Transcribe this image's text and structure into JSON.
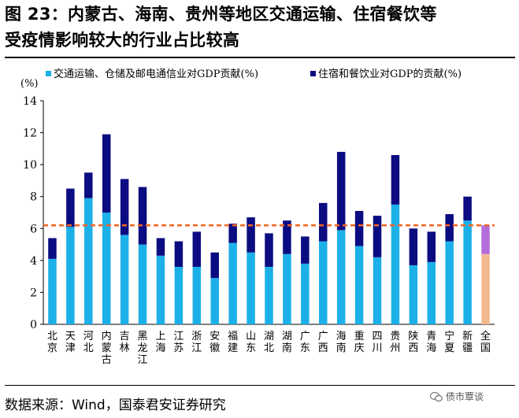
{
  "header": {
    "title_line1": "图 23：内蒙古、海南、贵州等地区交通运输、住宿餐饮等",
    "title_line2": "受疫情影响较大的行业占比较高"
  },
  "footer": {
    "source": "数据来源：Wind，国泰君安证券研究",
    "watermark": "债市覃谈"
  },
  "colors": {
    "transport": "#1cb0e8",
    "lodging": "#0c0c82",
    "national_transport": "#f5b98f",
    "national_lodging": "#b36ddb",
    "reference_line": "#f26522"
  },
  "chart_data": {
    "type": "bar",
    "stacked": true,
    "ylabel": "(%)",
    "ylim": [
      0,
      14
    ],
    "yticks": [
      0,
      2,
      4,
      6,
      8,
      10,
      12,
      14
    ],
    "grid": false,
    "legend_position": "top",
    "categories": [
      "北京",
      "天津",
      "河北",
      "内蒙古",
      "吉林",
      "黑龙江",
      "上海",
      "江苏",
      "浙江",
      "安徽",
      "福建",
      "山东",
      "湖北",
      "湖南",
      "广东",
      "广西",
      "海南",
      "重庆",
      "四川",
      "贵州",
      "陕西",
      "青海",
      "宁夏",
      "新疆",
      "全国"
    ],
    "series": [
      {
        "name": "交通运输、仓储及邮电通信业对GDP贡献(%)",
        "values": [
          4.1,
          6.1,
          7.9,
          7.0,
          5.6,
          5.0,
          4.3,
          3.6,
          3.6,
          2.9,
          5.1,
          4.5,
          3.6,
          4.4,
          3.8,
          5.2,
          5.9,
          4.9,
          4.2,
          7.5,
          3.7,
          3.9,
          5.2,
          6.5,
          4.4
        ]
      },
      {
        "name": "住宿和餐饮业对GDP的贡献(%)",
        "values": [
          1.3,
          2.4,
          1.6,
          4.9,
          3.5,
          3.6,
          1.1,
          1.6,
          2.2,
          1.6,
          1.2,
          2.2,
          2.1,
          2.1,
          1.7,
          2.4,
          4.9,
          2.2,
          2.6,
          3.1,
          2.3,
          1.9,
          1.7,
          1.5,
          1.8
        ]
      }
    ],
    "reference_line": {
      "value": 6.2,
      "style": "dashed"
    }
  }
}
